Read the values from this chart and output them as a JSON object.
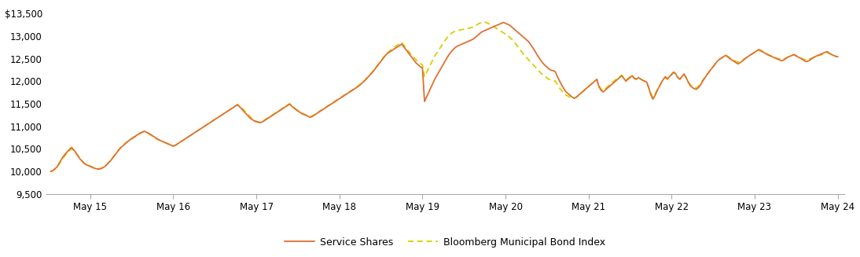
{
  "ylim": [
    9500,
    13700
  ],
  "yticks": [
    9500,
    10000,
    10500,
    11000,
    11500,
    12000,
    12500,
    13000,
    13500
  ],
  "ytick_labels": [
    "9,500",
    "10,000",
    "10,500",
    "11,000",
    "11,500",
    "12,000",
    "12,500",
    "13,000",
    "$13,500"
  ],
  "xtick_labels": [
    "May 15",
    "May 16",
    "May 17",
    "May 18",
    "May 19",
    "May 20",
    "May 21",
    "May 22",
    "May 23",
    "May 24"
  ],
  "service_color": "#E07030",
  "index_color": "#D4D000",
  "background_color": "#ffffff",
  "line_width": 1.3,
  "legend_service": "Service Shares",
  "legend_index": "Bloomberg Municipal Bond Index",
  "service_shares": [
    10000,
    10020,
    10060,
    10100,
    10180,
    10260,
    10330,
    10390,
    10440,
    10490,
    10530,
    10480,
    10420,
    10350,
    10280,
    10230,
    10180,
    10150,
    10130,
    10110,
    10090,
    10070,
    10060,
    10050,
    10060,
    10080,
    10110,
    10150,
    10200,
    10250,
    10310,
    10370,
    10430,
    10490,
    10540,
    10580,
    10620,
    10660,
    10700,
    10730,
    10760,
    10790,
    10820,
    10850,
    10870,
    10890,
    10870,
    10850,
    10820,
    10790,
    10760,
    10730,
    10700,
    10680,
    10660,
    10640,
    10620,
    10600,
    10580,
    10560,
    10580,
    10610,
    10640,
    10670,
    10700,
    10730,
    10760,
    10790,
    10820,
    10850,
    10880,
    10910,
    10940,
    10970,
    11000,
    11030,
    11060,
    11090,
    11120,
    11150,
    11180,
    11210,
    11240,
    11270,
    11300,
    11330,
    11360,
    11390,
    11420,
    11450,
    11480,
    11430,
    11380,
    11330,
    11280,
    11230,
    11180,
    11150,
    11120,
    11100,
    11090,
    11080,
    11100,
    11130,
    11160,
    11190,
    11220,
    11250,
    11280,
    11310,
    11340,
    11370,
    11400,
    11430,
    11460,
    11490,
    11450,
    11410,
    11370,
    11340,
    11310,
    11280,
    11260,
    11240,
    11220,
    11200,
    11220,
    11250,
    11280,
    11310,
    11340,
    11370,
    11400,
    11430,
    11460,
    11490,
    11520,
    11550,
    11580,
    11610,
    11640,
    11670,
    11700,
    11730,
    11760,
    11790,
    11820,
    11850,
    11880,
    11920,
    11960,
    12000,
    12050,
    12100,
    12150,
    12200,
    12260,
    12320,
    12380,
    12440,
    12500,
    12560,
    12610,
    12640,
    12670,
    12700,
    12730,
    12760,
    12790,
    12820,
    12760,
    12700,
    12640,
    12580,
    12520,
    12460,
    12400,
    12360,
    12320,
    12290,
    11550,
    11650,
    11750,
    11850,
    11950,
    12050,
    12130,
    12210,
    12290,
    12370,
    12450,
    12530,
    12600,
    12660,
    12710,
    12750,
    12780,
    12800,
    12820,
    12840,
    12860,
    12880,
    12900,
    12920,
    12950,
    12990,
    13030,
    13070,
    13100,
    13120,
    13140,
    13160,
    13180,
    13200,
    13220,
    13240,
    13260,
    13280,
    13300,
    13280,
    13260,
    13240,
    13200,
    13160,
    13120,
    13080,
    13040,
    13000,
    12960,
    12920,
    12880,
    12820,
    12750,
    12680,
    12600,
    12530,
    12460,
    12400,
    12350,
    12310,
    12270,
    12240,
    12230,
    12210,
    12100,
    12010,
    11920,
    11840,
    11770,
    11730,
    11690,
    11650,
    11620,
    11640,
    11680,
    11720,
    11760,
    11800,
    11840,
    11880,
    11920,
    11960,
    12000,
    12040,
    11880,
    11800,
    11760,
    11800,
    11840,
    11880,
    11920,
    11960,
    12000,
    12040,
    12080,
    12120,
    12060,
    12000,
    12040,
    12080,
    12120,
    12060,
    12040,
    12080,
    12050,
    12020,
    12000,
    11980,
    11850,
    11700,
    11600,
    11680,
    11780,
    11870,
    11960,
    12040,
    12100,
    12050,
    12100,
    12150,
    12200,
    12160,
    12080,
    12040,
    12100,
    12160,
    12080,
    11980,
    11900,
    11860,
    11830,
    11820,
    11860,
    11920,
    12000,
    12070,
    12140,
    12200,
    12260,
    12320,
    12380,
    12440,
    12480,
    12510,
    12540,
    12570,
    12540,
    12500,
    12470,
    12440,
    12410,
    12380,
    12410,
    12440,
    12480,
    12520,
    12550,
    12580,
    12610,
    12640,
    12670,
    12700,
    12680,
    12650,
    12620,
    12590,
    12570,
    12550,
    12530,
    12510,
    12490,
    12470,
    12450,
    12470,
    12500,
    12530,
    12550,
    12570,
    12590,
    12560,
    12530,
    12510,
    12480,
    12450,
    12430,
    12450,
    12480,
    12510,
    12540,
    12560,
    12580,
    12600,
    12620,
    12640,
    12650,
    12620,
    12590,
    12570,
    12550,
    12540
  ],
  "bloomberg_index": [
    10000,
    10020,
    10050,
    10090,
    10160,
    10230,
    10300,
    10360,
    10410,
    10460,
    10500,
    10460,
    10410,
    10350,
    10290,
    10240,
    10190,
    10160,
    10140,
    10120,
    10100,
    10080,
    10070,
    10060,
    10070,
    10090,
    10120,
    10160,
    10210,
    10260,
    10320,
    10380,
    10440,
    10500,
    10550,
    10590,
    10630,
    10660,
    10690,
    10720,
    10750,
    10780,
    10810,
    10840,
    10860,
    10880,
    10860,
    10840,
    10810,
    10780,
    10750,
    10720,
    10700,
    10680,
    10660,
    10640,
    10620,
    10600,
    10580,
    10560,
    10580,
    10610,
    10640,
    10670,
    10700,
    10730,
    10760,
    10790,
    10820,
    10850,
    10880,
    10910,
    10940,
    10970,
    11000,
    11030,
    11060,
    11090,
    11120,
    11150,
    11180,
    11210,
    11240,
    11270,
    11300,
    11330,
    11360,
    11390,
    11420,
    11450,
    11480,
    11440,
    11400,
    11360,
    11310,
    11260,
    11210,
    11170,
    11140,
    11110,
    11100,
    11090,
    11110,
    11140,
    11170,
    11200,
    11230,
    11260,
    11290,
    11320,
    11350,
    11380,
    11410,
    11440,
    11470,
    11500,
    11460,
    11420,
    11380,
    11350,
    11320,
    11290,
    11270,
    11250,
    11230,
    11210,
    11230,
    11260,
    11290,
    11320,
    11350,
    11380,
    11410,
    11440,
    11470,
    11500,
    11530,
    11560,
    11590,
    11620,
    11650,
    11680,
    11710,
    11740,
    11770,
    11800,
    11830,
    11860,
    11890,
    11930,
    11970,
    12010,
    12060,
    12110,
    12160,
    12210,
    12270,
    12330,
    12390,
    12450,
    12510,
    12570,
    12620,
    12660,
    12700,
    12740,
    12770,
    12800,
    12830,
    12860,
    12800,
    12740,
    12680,
    12620,
    12570,
    12520,
    12470,
    12430,
    12390,
    12360,
    12100,
    12190,
    12290,
    12380,
    12470,
    12560,
    12630,
    12700,
    12770,
    12840,
    12910,
    12970,
    13020,
    13060,
    13090,
    13110,
    13120,
    13130,
    13140,
    13150,
    13160,
    13170,
    13180,
    13190,
    13210,
    13240,
    13270,
    13290,
    13300,
    13310,
    13290,
    13270,
    13250,
    13220,
    13190,
    13160,
    13130,
    13100,
    13070,
    13040,
    13010,
    12970,
    12930,
    12880,
    12820,
    12760,
    12700,
    12640,
    12580,
    12530,
    12480,
    12430,
    12380,
    12330,
    12280,
    12230,
    12180,
    12140,
    12100,
    12070,
    12040,
    12020,
    12010,
    12000,
    11920,
    11850,
    11790,
    11740,
    11700,
    11670,
    11650,
    11630,
    11620,
    11640,
    11680,
    11720,
    11760,
    11800,
    11840,
    11880,
    11920,
    11960,
    12000,
    12040,
    11900,
    11830,
    11790,
    11830,
    11870,
    11910,
    11950,
    11990,
    12030,
    12070,
    12100,
    12130,
    12070,
    12020,
    12060,
    12100,
    12130,
    12070,
    12050,
    12080,
    12050,
    12020,
    12000,
    11980,
    11860,
    11730,
    11640,
    11710,
    11800,
    11880,
    11960,
    12030,
    12080,
    12040,
    12090,
    12140,
    12190,
    12150,
    12080,
    12050,
    12100,
    12150,
    12080,
    11990,
    11920,
    11880,
    11860,
    11850,
    11890,
    11950,
    12020,
    12080,
    12140,
    12200,
    12260,
    12320,
    12380,
    12440,
    12480,
    12510,
    12540,
    12570,
    12550,
    12520,
    12490,
    12460,
    12440,
    12420,
    12440,
    12460,
    12490,
    12520,
    12550,
    12580,
    12610,
    12640,
    12660,
    12680,
    12660,
    12640,
    12620,
    12600,
    12580,
    12560,
    12540,
    12520,
    12500,
    12490,
    12470,
    12490,
    12510,
    12530,
    12550,
    12570,
    12580,
    12560,
    12540,
    12520,
    12500,
    12480,
    12460,
    12480,
    12500,
    12520,
    12540,
    12560,
    12570,
    12580,
    12600,
    12620,
    12630,
    12610,
    12590,
    12570,
    12550,
    12540
  ]
}
